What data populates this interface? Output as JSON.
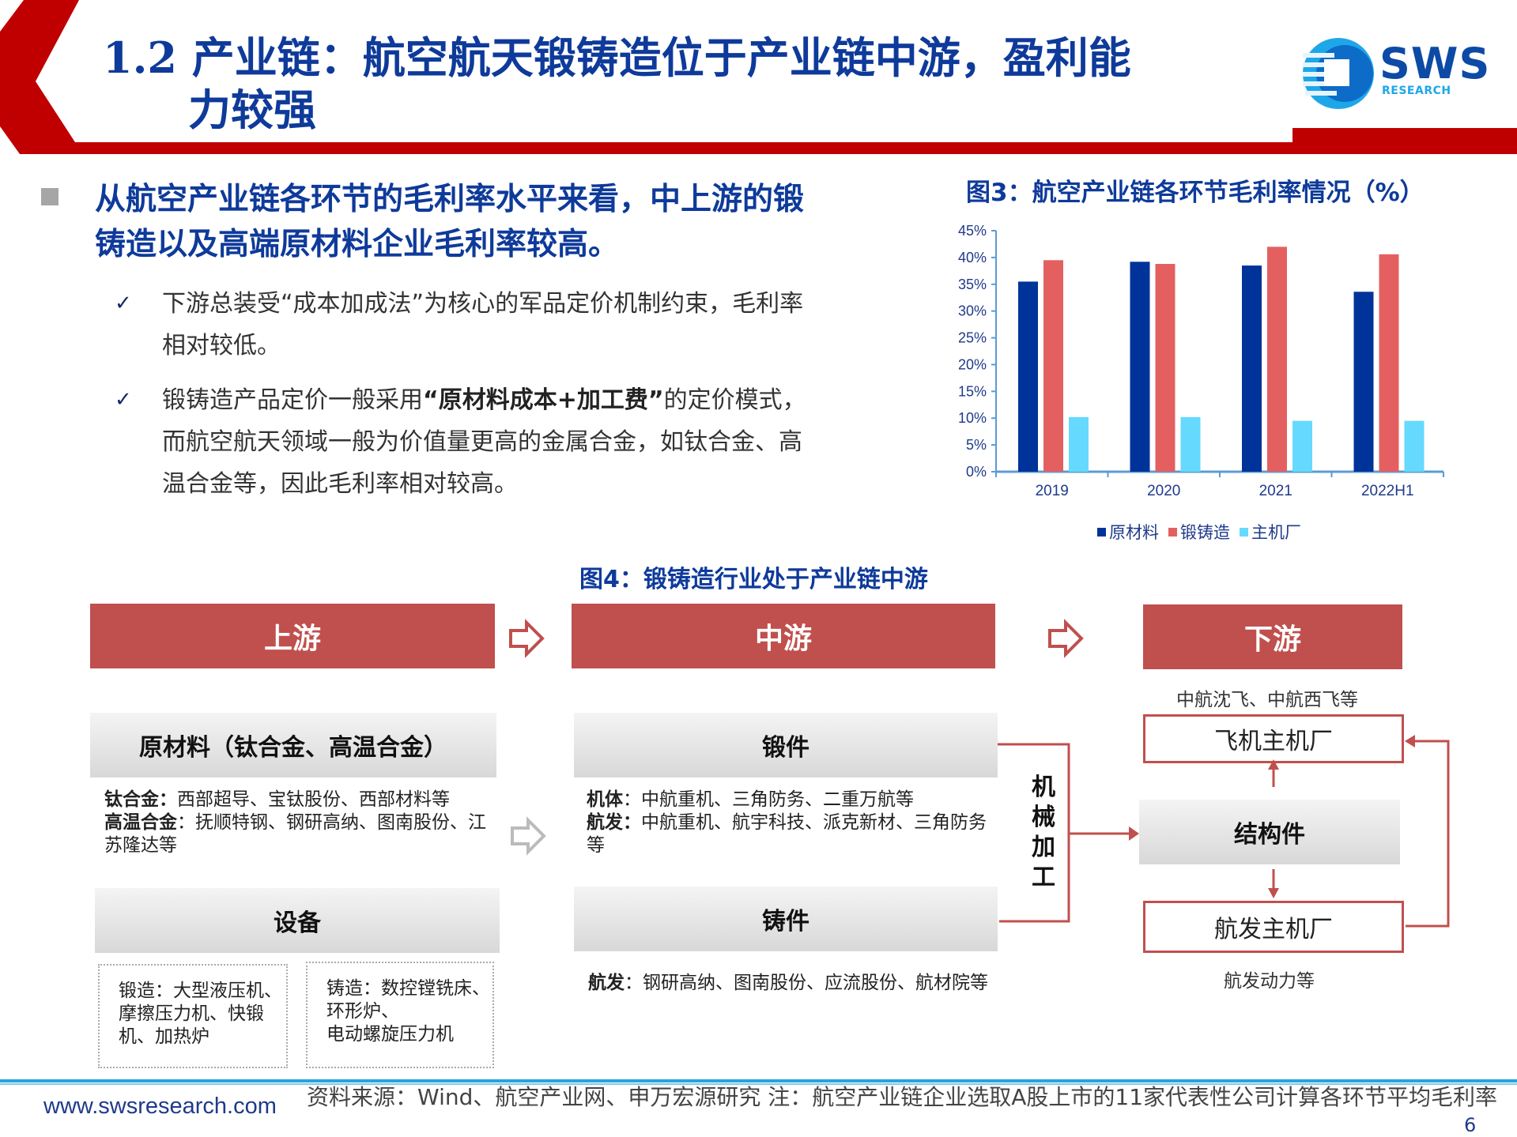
{
  "header": {
    "title_line1": "1.2 产业链：航空航天锻铸造位于产业链中游，盈利能",
    "title_line2": "力较强",
    "logo_text": "SWS",
    "logo_sub": "RESEARCH",
    "accent_color": "#c00000",
    "title_color": "#0e3a9a"
  },
  "left": {
    "lead": "从航空产业链各环节的毛利率水平来看，中上游的锻铸造以及高端原材料企业毛利率较高。",
    "items": [
      {
        "check": "✓",
        "pre": "下游总装受“成本加成法”为核心的军品定价机制约束，毛利率相对较低。",
        "bold": "",
        "post": ""
      },
      {
        "check": "✓",
        "pre": "锻铸造产品定价一般采用",
        "bold": "“原材料成本+加工费”",
        "post": "的定价模式，而航空航天领域一般为价值量更高的金属合金，如钛合金、高温合金等，因此毛利率相对较高。"
      }
    ]
  },
  "chart_title": "图3：航空产业链各环节毛利率情况（%）",
  "chart_data": {
    "type": "bar",
    "title": "图3：航空产业链各环节毛利率情况（%）",
    "categories": [
      "2019",
      "2020",
      "2021",
      "2022H1"
    ],
    "series": [
      {
        "name": "原材料",
        "color": "#003399",
        "values": [
          35.5,
          39.2,
          38.5,
          33.6
        ]
      },
      {
        "name": "锻铸造",
        "color": "#e46060",
        "values": [
          39.5,
          38.8,
          42.0,
          40.6
        ]
      },
      {
        "name": "主机厂",
        "color": "#66d9ff",
        "values": [
          10.2,
          10.2,
          9.5,
          9.5
        ]
      }
    ],
    "yticks": [
      "0%",
      "5%",
      "10%",
      "15%",
      "20%",
      "25%",
      "30%",
      "35%",
      "40%",
      "45%"
    ],
    "ylim": [
      0,
      45
    ],
    "xlabel": "",
    "ylabel": "",
    "grid": false,
    "legend_position": "bottom"
  },
  "diagram": {
    "title": "图4：锻铸造行业处于产业链中游",
    "upstream": {
      "head": "上游",
      "materials_head": "原材料（钛合金、高温合金）",
      "materials_l1_bold": "钛合金：",
      "materials_l1": "西部超导、宝钛股份、西部材料等",
      "materials_l2_bold": "高温合金",
      "materials_l2": "：抚顺特钢、钢研高纳、图南股份、江苏隆达等",
      "equipment_head": "设备",
      "equip_forging": "锻造：大型液压机、摩擦压力机、快锻机、加热炉",
      "equip_casting_l1": "铸造：数控镗铣床、",
      "equip_casting_l2": "环形炉、",
      "equip_casting_l3": "电动螺旋压力机"
    },
    "midstream": {
      "head": "中游",
      "forging_head": "锻件",
      "forging_l1_bold": "机体",
      "forging_l1": "：中航重机、三角防务、二重万航等",
      "forging_l2_bold": "航发：",
      "forging_l2": "中航重机、航宇科技、派克新材、三角防务等",
      "casting_head": "铸件",
      "casting_l1_bold": "航发",
      "casting_l1": "：钢研高纳、图南股份、应流股份、航材院等",
      "machining": "机械加工"
    },
    "downstream": {
      "head": "下游",
      "aircraft_note": "中航沈飞、中航西飞等",
      "aircraft_oem": "飞机主机厂",
      "structure": "结构件",
      "engine_oem": "航发主机厂",
      "engine_note": "航发动力等"
    }
  },
  "footer": {
    "url": "www.swsresearch.com",
    "source": "资料来源：Wind、航空产业网、申万宏源研究 注：航空产业链企业选取A股上市的11家代表性公司计算各环节平均毛利率",
    "page": "6"
  }
}
